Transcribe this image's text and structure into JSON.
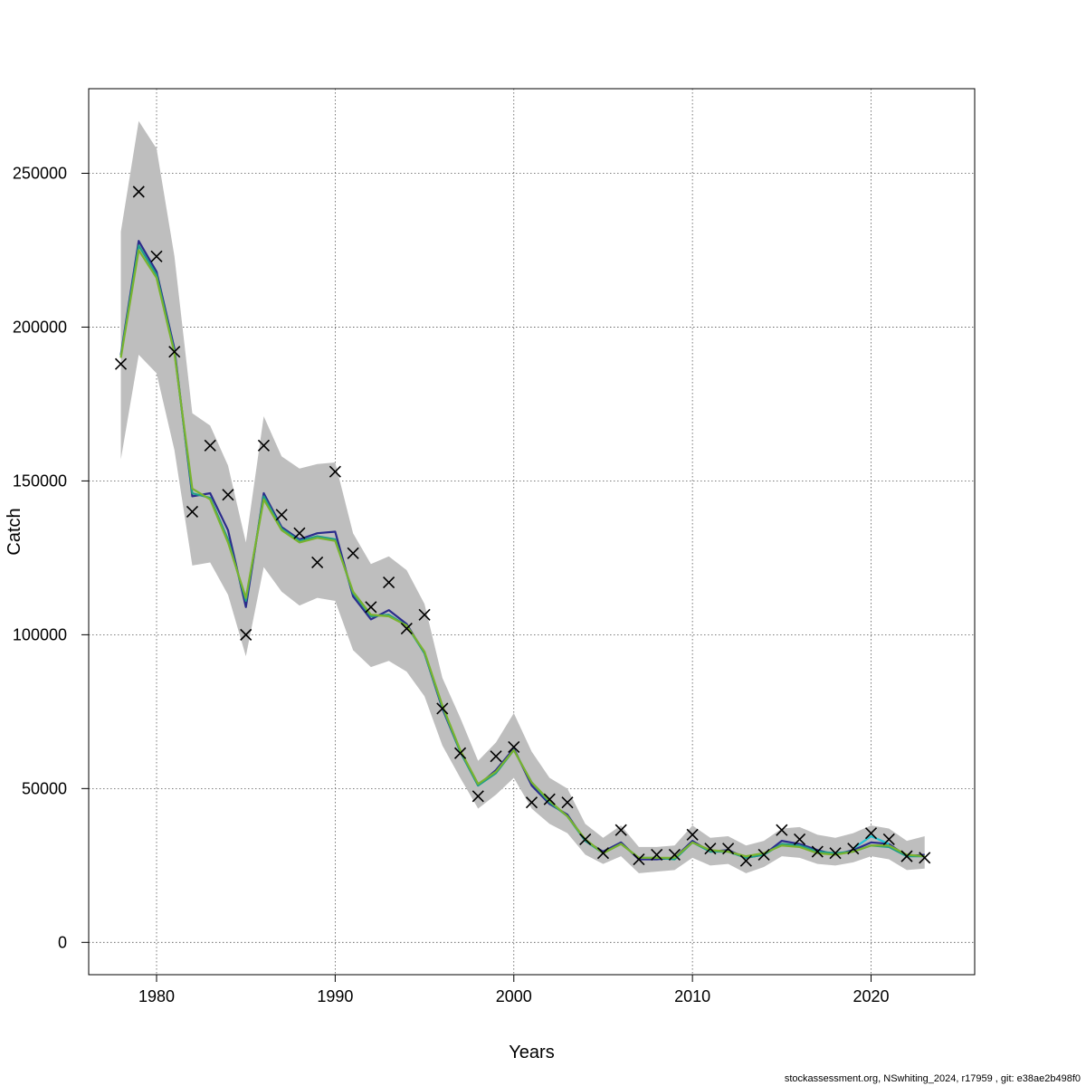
{
  "footer": "stockassessment.org, NSwhiting_2024, r17959 , git: e38ae2b498f0",
  "chart_data": {
    "type": "line",
    "xlabel": "Years",
    "ylabel": "Catch",
    "xlim": [
      1976.2,
      2025.8
    ],
    "ylim": [
      -10500,
      277500
    ],
    "x_ticks": [
      1980,
      1990,
      2000,
      2010,
      2020
    ],
    "y_ticks": [
      0,
      50000,
      100000,
      150000,
      200000,
      250000
    ],
    "grid": true,
    "colors": {
      "band": "#bebebe",
      "line_dark": "#2b2c8c",
      "line_teal": "#1f9e89",
      "line_green": "#7ab32e",
      "line_cyan": "#22c3d1",
      "marker": "#000000"
    },
    "years": [
      1978,
      1979,
      1980,
      1981,
      1982,
      1983,
      1984,
      1985,
      1986,
      1987,
      1988,
      1989,
      1990,
      1991,
      1992,
      1993,
      1994,
      1995,
      1996,
      1997,
      1998,
      1999,
      2000,
      2001,
      2002,
      2003,
      2004,
      2005,
      2006,
      2007,
      2008,
      2009,
      2010,
      2011,
      2012,
      2013,
      2014,
      2015,
      2016,
      2017,
      2018,
      2019,
      2020,
      2021,
      2022,
      2023
    ],
    "band_upper": [
      231000,
      267000,
      258000,
      223000,
      172000,
      168000,
      155000,
      130000,
      171000,
      158000,
      154000,
      155500,
      156000,
      133000,
      123000,
      125500,
      121000,
      110000,
      86000,
      73000,
      59000,
      65000,
      74500,
      62000,
      53500,
      50000,
      38500,
      34000,
      38000,
      31000,
      31000,
      31500,
      38000,
      34000,
      34500,
      31500,
      33000,
      37000,
      37500,
      35000,
      34000,
      35500,
      38000,
      37000,
      33000,
      34500
    ],
    "band_lower": [
      157000,
      191000,
      185000,
      160000,
      122500,
      123500,
      113000,
      93000,
      122000,
      114000,
      109500,
      112000,
      111000,
      95000,
      89500,
      91500,
      88000,
      80000,
      64000,
      53500,
      43500,
      48000,
      53500,
      43500,
      38500,
      35500,
      28500,
      25500,
      28000,
      22500,
      23000,
      23500,
      27500,
      25000,
      25500,
      22500,
      24500,
      28000,
      27500,
      25500,
      25000,
      26000,
      28000,
      27000,
      23500,
      24000
    ],
    "series": [
      {
        "color": "line_dark",
        "values": [
          191000,
          228000,
          218000,
          193000,
          145000,
          146000,
          134000,
          109000,
          146000,
          135000,
          131000,
          133000,
          133500,
          112500,
          105000,
          108000,
          103500,
          94000,
          76000,
          62000,
          51000,
          56000,
          63000,
          51000,
          45000,
          41500,
          33000,
          29500,
          32500,
          27000,
          27000,
          27500,
          33000,
          29500,
          30000,
          27500,
          28500,
          33000,
          32000,
          30000,
          28500,
          30000,
          32500,
          32000,
          28000,
          28500
        ]
      },
      {
        "color": "line_teal",
        "values": [
          190500,
          226500,
          217000,
          192000,
          146000,
          144500,
          131000,
          111000,
          145000,
          134500,
          130500,
          132000,
          131000,
          113500,
          106000,
          106500,
          103000,
          94000,
          76500,
          62000,
          51000,
          55000,
          62500,
          52000,
          45500,
          41000,
          33000,
          29000,
          32000,
          27500,
          27500,
          27000,
          32500,
          29500,
          29500,
          27500,
          28500,
          32000,
          31500,
          29500,
          29000,
          29500,
          31500,
          31000,
          28000,
          28000
        ]
      },
      {
        "color": "line_green",
        "values": [
          190000,
          225000,
          216000,
          191500,
          147500,
          144000,
          130000,
          112000,
          144000,
          134000,
          130000,
          131500,
          130500,
          114000,
          106500,
          106000,
          103000,
          94500,
          77000,
          62500,
          51500,
          55500,
          62500,
          52000,
          46000,
          41000,
          33500,
          29000,
          32000,
          27500,
          27500,
          27500,
          32500,
          30000,
          29500,
          28000,
          29000,
          31500,
          31000,
          29000,
          28500,
          29500,
          31500,
          31500,
          28500,
          28000
        ]
      },
      {
        "color": "line_cyan",
        "values": [
          null,
          null,
          null,
          null,
          null,
          null,
          null,
          null,
          null,
          null,
          null,
          null,
          null,
          null,
          null,
          null,
          null,
          null,
          null,
          null,
          null,
          null,
          null,
          null,
          null,
          null,
          null,
          null,
          null,
          null,
          null,
          null,
          null,
          null,
          null,
          null,
          null,
          null,
          null,
          null,
          null,
          30500,
          34500,
          32000,
          null,
          null
        ]
      }
    ],
    "observed": [
      188000,
      244000,
      223000,
      192000,
      140000,
      161500,
      145500,
      100000,
      161500,
      139000,
      133000,
      123500,
      153000,
      126500,
      109000,
      117000,
      102000,
      106500,
      76000,
      61500,
      47500,
      60500,
      63500,
      45500,
      46500,
      45500,
      33500,
      29000,
      36500,
      27000,
      28500,
      28500,
      35000,
      30500,
      30500,
      26500,
      28500,
      36500,
      33500,
      29500,
      29000,
      30500,
      35500,
      33500,
      28000,
      27500
    ]
  }
}
